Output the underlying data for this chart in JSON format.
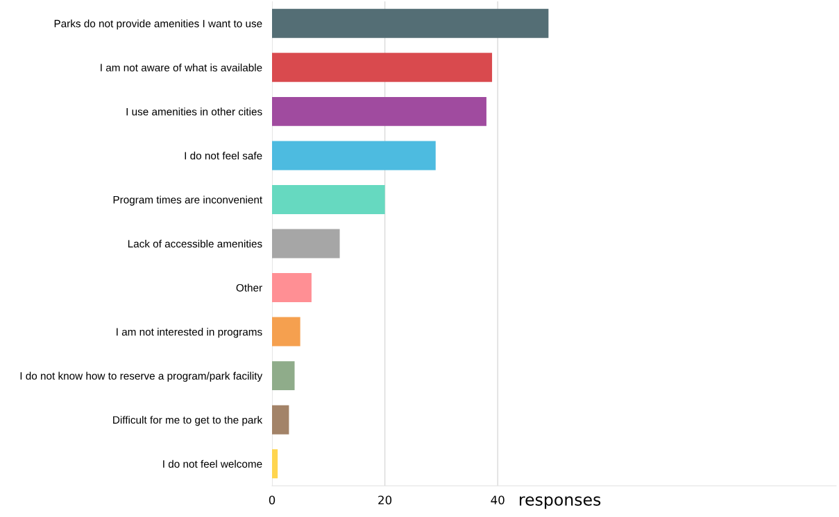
{
  "chart_data": {
    "type": "bar",
    "orientation": "horizontal",
    "xlabel": "responses",
    "categories": [
      "Parks do not provide amenities I want to use",
      "I am not aware of what is available",
      "I use amenities in other cities",
      "I do not feel safe",
      "Program times are inconvenient",
      "Lack of accessible amenities",
      "Other",
      "I am not interested in programs",
      "I do not know how to reserve a program/park facility",
      "Difficult for me to get to the park",
      "I do not feel welcome"
    ],
    "values": [
      49,
      39,
      38,
      29,
      20,
      12,
      7,
      5,
      4,
      3,
      1
    ],
    "colors": [
      "#546e75",
      "#d94a4e",
      "#a04b9f",
      "#4dbbe0",
      "#66d9c0",
      "#a6a6a6",
      "#ff8f94",
      "#f5a04f",
      "#8fac8a",
      "#a38368",
      "#ffd54f"
    ],
    "xlim": [
      0,
      100
    ],
    "xticks": [
      0,
      20,
      40
    ],
    "grid": "x",
    "legend": false
  }
}
